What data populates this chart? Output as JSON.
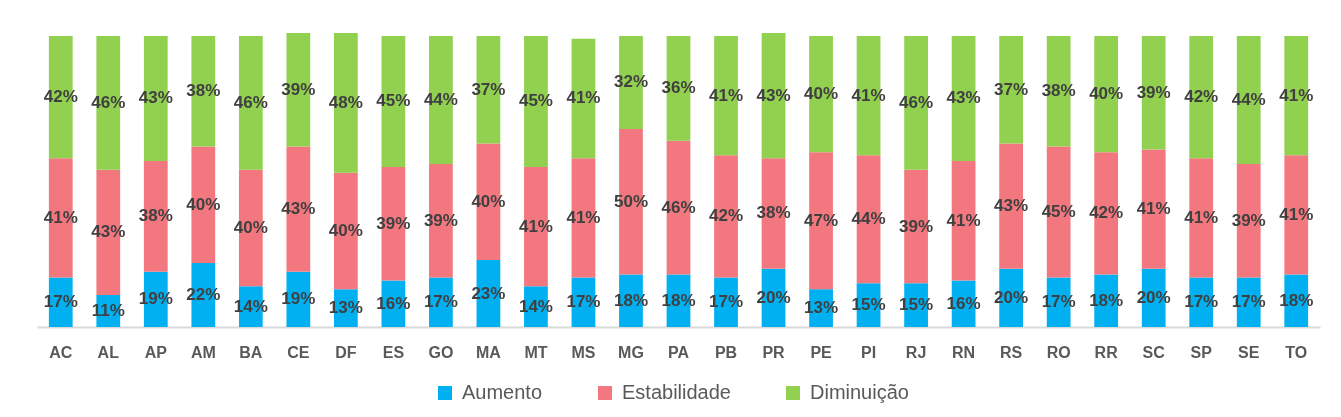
{
  "chart_data": {
    "type": "bar",
    "stacked": true,
    "legend": "bottom",
    "tick_labels": "x",
    "categories": [
      "AC",
      "AL",
      "AP",
      "AM",
      "BA",
      "CE",
      "DF",
      "ES",
      "GO",
      "MA",
      "MT",
      "MS",
      "MG",
      "PA",
      "PB",
      "PR",
      "PE",
      "PI",
      "RJ",
      "RN",
      "RS",
      "RO",
      "RR",
      "SC",
      "SP",
      "SE",
      "TO"
    ],
    "series": [
      {
        "name": "Aumento",
        "color": "#00b0f0",
        "values": [
          17,
          11,
          19,
          22,
          14,
          19,
          13,
          16,
          17,
          23,
          14,
          17,
          18,
          18,
          17,
          20,
          13,
          15,
          15,
          16,
          20,
          17,
          18,
          20,
          17,
          17,
          18
        ],
        "value_labels": [
          "17%",
          "11%",
          "19%",
          "22%",
          "14%",
          "19%",
          "13%",
          "16%",
          "17%",
          "23%",
          "14%",
          "17%",
          "18%",
          "18%",
          "17%",
          "20%",
          "13%",
          "15%",
          "15%",
          "16%",
          "20%",
          "17%",
          "18%",
          "20%",
          "17%",
          "17%",
          "18%"
        ]
      },
      {
        "name": "Estabilidade",
        "color": "#f3777f",
        "values": [
          41,
          43,
          38,
          40,
          40,
          43,
          40,
          39,
          39,
          40,
          41,
          41,
          50,
          46,
          42,
          38,
          47,
          44,
          39,
          41,
          43,
          45,
          42,
          41,
          41,
          39,
          41
        ],
        "value_labels": [
          "41%",
          "43%",
          "38%",
          "40%",
          "40%",
          "43%",
          "40%",
          "39%",
          "39%",
          "40%",
          "41%",
          "41%",
          "50%",
          "46%",
          "42%",
          "38%",
          "47%",
          "44%",
          "39%",
          "41%",
          "43%",
          "45%",
          "42%",
          "41%",
          "41%",
          "39%",
          "41%"
        ]
      },
      {
        "name": "Diminuição",
        "color": "#92d050",
        "values": [
          42,
          46,
          43,
          38,
          46,
          39,
          48,
          45,
          44,
          37,
          45,
          41,
          32,
          36,
          41,
          43,
          40,
          41,
          46,
          43,
          37,
          38,
          40,
          39,
          42,
          44,
          41
        ],
        "value_labels": [
          "42%",
          "46%",
          "43%",
          "38%",
          "46%",
          "39%",
          "48%",
          "45%",
          "44%",
          "37%",
          "45%",
          "41%",
          "32%",
          "36%",
          "41%",
          "43%",
          "40%",
          "41%",
          "46%",
          "43%",
          "37%",
          "38%",
          "40%",
          "39%",
          "42%",
          "44%",
          "41%"
        ]
      }
    ]
  }
}
